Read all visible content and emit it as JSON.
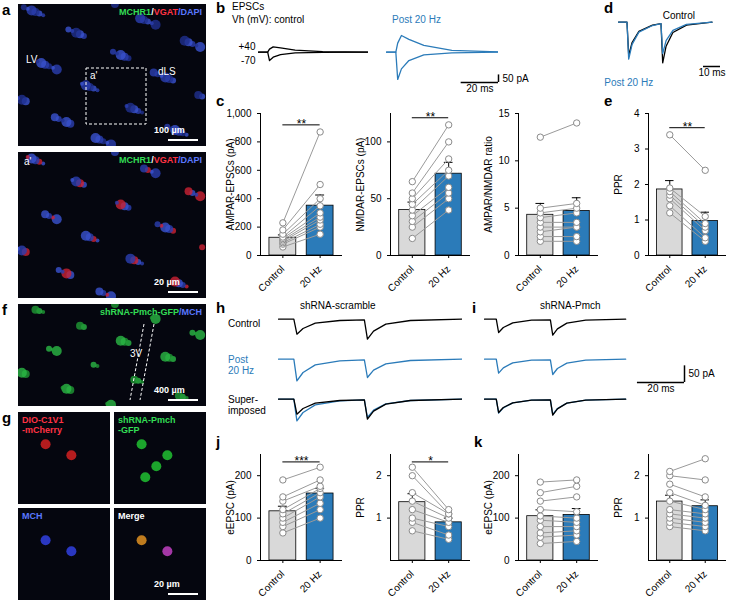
{
  "images": [
    {
      "panel": "a",
      "tiles": [
        {
          "lines": [
            [
              {
                "text": "MCHR1",
                "color": "#33dd55"
              },
              {
                "text": "/",
                "color": "#ffffff"
              },
              {
                "text": "VGAT",
                "color": "#ff3344"
              },
              {
                "text": "/DAPI",
                "color": "#5a78ff"
              }
            ]
          ],
          "labels": [
            "LV",
            "dLS",
            "a'"
          ],
          "scalebar": "100 µm"
        },
        {
          "lines": [
            [
              {
                "text": "MCHR1",
                "color": "#33dd55"
              },
              {
                "text": "/",
                "color": "#ffffff"
              },
              {
                "text": "VGAT",
                "color": "#ff3344"
              },
              {
                "text": "/DAPI",
                "color": "#5a78ff"
              }
            ]
          ],
          "labels": [
            "a'"
          ],
          "scalebar": "20 µm"
        }
      ]
    },
    {
      "panel": "f",
      "tiles": [
        {
          "lines": [
            [
              {
                "text": "shRNA-Pmch-GFP",
                "color": "#33dd55"
              },
              {
                "text": "/MCH",
                "color": "#5a78ff"
              }
            ]
          ],
          "labels": [
            "3V"
          ],
          "scalebar": "400 µm"
        }
      ]
    },
    {
      "panel": "g",
      "tiles": [
        {
          "lines": [
            [
              {
                "text": "DIO-C1V1",
                "color": "#ff3344"
              }
            ],
            [
              {
                "text": "-mCherry",
                "color": "#ff3344"
              }
            ]
          ]
        },
        {
          "lines": [
            [
              {
                "text": "shRNA-Pmch",
                "color": "#33dd55"
              }
            ],
            [
              {
                "text": "-GFP",
                "color": "#33dd55"
              }
            ]
          ]
        },
        {
          "lines": [
            [
              {
                "text": "MCH",
                "color": "#5a78ff"
              }
            ]
          ]
        },
        {
          "lines": [
            [
              {
                "text": "Merge",
                "color": "#ffffff"
              }
            ]
          ],
          "scalebar": "20 µm"
        }
      ]
    }
  ],
  "traces": [
    {
      "panel": "b",
      "title": "EPSCs",
      "x": [
        0,
        5,
        6,
        8,
        12,
        20,
        35,
        60
      ],
      "xlim": [
        0,
        60
      ],
      "ylim": [
        -200,
        130
      ],
      "scalebar": {
        "x": 20,
        "y": 50,
        "x_label": "20 ms",
        "y_label": "50 pA"
      },
      "plots": [
        {
          "label": [
            "Vh (mV): control"
          ],
          "color": "#000000",
          "series": [
            {
              "name": "+40",
              "color": "#000000",
              "y": [
                0,
                0,
                20,
                35,
                28,
                14,
                4,
                1
              ]
            },
            {
              "name": "-70",
              "color": "#000000",
              "y": [
                0,
                0,
                -55,
                -33,
                -16,
                -5,
                -1,
                0
              ]
            }
          ]
        },
        {
          "label": [
            "Post 20 Hz"
          ],
          "color": "#2b7bb9",
          "series": [
            {
              "color": "#2b7bb9",
              "y": [
                0,
                0,
                60,
                110,
                85,
                45,
                12,
                2
              ]
            },
            {
              "color": "#2b7bb9",
              "y": [
                0,
                0,
                -180,
                -110,
                -55,
                -18,
                -4,
                0
              ]
            }
          ]
        }
      ]
    },
    {
      "panel": "d",
      "x": [
        0,
        5,
        6,
        8,
        12,
        20,
        25,
        26,
        28,
        32,
        40,
        55
      ],
      "xlim": [
        0,
        60
      ],
      "ylim": [
        -120,
        10
      ],
      "scalebar": {
        "x": 10,
        "x_label": "10 ms"
      },
      "plots": [
        {
          "series": [
            {
              "name": "Control",
              "color": "#000000",
              "y": [
                0,
                0,
                -90,
                -55,
                -25,
                -8,
                -4,
                -110,
                -65,
                -28,
                -8,
                0
              ]
            },
            {
              "name": "Post 20 Hz",
              "color": "#2b7bb9",
              "y": [
                0,
                0,
                -100,
                -60,
                -27,
                -9,
                -4,
                -85,
                -50,
                -22,
                -6,
                0
              ]
            }
          ]
        }
      ]
    },
    {
      "panel": "h",
      "title": "shRNA-scramble",
      "x": [
        0,
        5,
        6,
        8,
        12,
        20,
        28,
        29,
        31,
        35,
        43,
        60
      ],
      "xlim": [
        0,
        60
      ],
      "ylim": [
        -70,
        5
      ],
      "plots": [
        {
          "label": [
            "Control"
          ],
          "color": "#000000",
          "series": [
            {
              "color": "#000000",
              "y": [
                0,
                0,
                -45,
                -28,
                -12,
                -4,
                -2,
                -60,
                -36,
                -15,
                -4,
                0
              ]
            }
          ]
        },
        {
          "label": [
            "Post",
            "20 Hz"
          ],
          "color": "#2b7bb9",
          "series": [
            {
              "color": "#2b7bb9",
              "y": [
                0,
                0,
                -65,
                -40,
                -17,
                -5,
                -2,
                -55,
                -33,
                -14,
                -4,
                0
              ]
            }
          ]
        },
        {
          "label": [
            "Super-",
            "imposed"
          ],
          "color": "#000000",
          "superimposed": true
        }
      ]
    },
    {
      "panel": "i",
      "title": "shRNA-Pmch",
      "x": [
        0,
        5,
        6,
        8,
        12,
        20,
        28,
        29,
        31,
        35,
        43,
        60
      ],
      "xlim": [
        0,
        85
      ],
      "ylim": [
        -70,
        5
      ],
      "scalebar": {
        "x": 20,
        "y": 50,
        "x_label": "20 ms",
        "y_label": "50 pA"
      },
      "plots": [
        {
          "series": [
            {
              "color": "#000000",
              "y": [
                0,
                0,
                -40,
                -25,
                -11,
                -3,
                -2,
                -48,
                -29,
                -12,
                -3,
                0
              ]
            }
          ]
        },
        {
          "series": [
            {
              "color": "#2b7bb9",
              "y": [
                0,
                0,
                -42,
                -26,
                -11,
                -3,
                -2,
                -46,
                -28,
                -12,
                -3,
                0
              ]
            }
          ]
        },
        {
          "superimposed": true
        }
      ]
    }
  ],
  "chart_data": [
    {
      "panel": "c",
      "type": "bar",
      "categories": [
        "Control",
        "20 Hz"
      ],
      "values": [
        125,
        351
      ],
      "errors": [
        20,
        75
      ],
      "points": [
        [
          60,
          80,
          90,
          100,
          110,
          120,
          130,
          150,
          180,
          230
        ],
        [
          150,
          200,
          220,
          250,
          270,
          300,
          350,
          400,
          500,
          870
        ]
      ],
      "colors": [
        "#d9d9d9",
        "#2b7bb9"
      ],
      "ylabel": "AMPAR-EPSCs (pA)",
      "ylim": [
        0,
        1000
      ],
      "yticks": [
        0,
        200,
        400,
        600,
        800,
        {
          "value": 1000,
          "label": "1,000"
        }
      ],
      "significance": "**"
    },
    {
      "type": "bar",
      "categories": [
        "Control",
        "20 Hz"
      ],
      "values": [
        40,
        72
      ],
      "errors": [
        7,
        10
      ],
      "points": [
        [
          15,
          25,
          30,
          35,
          40,
          45,
          50,
          55,
          65
        ],
        [
          40,
          50,
          55,
          60,
          70,
          75,
          85,
          100,
          115
        ]
      ],
      "colors": [
        "#d9d9d9",
        "#2b7bb9"
      ],
      "ylabel": "NMDAR-EPSCs (pA)",
      "ylim": [
        0,
        125
      ],
      "yticks": [
        0,
        50,
        100
      ],
      "significance": "**"
    },
    {
      "type": "bar",
      "categories": [
        "Control",
        "20 Hz"
      ],
      "values": [
        4.3,
        4.7
      ],
      "errors": [
        1.2,
        1.4
      ],
      "points": [
        [
          1.5,
          2,
          2.5,
          3,
          3.5,
          4,
          4.5,
          5,
          12.5
        ],
        [
          1.5,
          2,
          3,
          3,
          3.5,
          4.5,
          5,
          5.5,
          14
        ]
      ],
      "colors": [
        "#d9d9d9",
        "#2b7bb9"
      ],
      "ylabel": "AMPAR/NMDAR ratio",
      "ylim": [
        0,
        15
      ],
      "yticks": [
        0,
        5,
        10,
        15
      ]
    },
    {
      "panel": "e",
      "type": "bar",
      "categories": [
        "Control",
        "20 Hz"
      ],
      "values": [
        1.86,
        0.97
      ],
      "errors": [
        0.25,
        0.25
      ],
      "points": [
        [
          1.2,
          1.4,
          1.6,
          1.7,
          1.8,
          1.9,
          3.4
        ],
        [
          0.4,
          0.5,
          0.7,
          0.8,
          0.9,
          1.1,
          2.4
        ]
      ],
      "colors": [
        "#d9d9d9",
        "#2b7bb9"
      ],
      "ylabel": "PPR",
      "ylim": [
        0,
        4
      ],
      "yticks": [
        0,
        1,
        2,
        3,
        4
      ],
      "significance": "**"
    },
    {
      "panel": "j",
      "type": "bar",
      "categories": [
        "Control",
        "20 Hz"
      ],
      "values": [
        116,
        158
      ],
      "errors": [
        12,
        12
      ],
      "points": [
        [
          65,
          80,
          90,
          100,
          110,
          120,
          140,
          150,
          190
        ],
        [
          100,
          120,
          135,
          150,
          160,
          170,
          175,
          190,
          220
        ]
      ],
      "colors": [
        "#d9d9d9",
        "#2b7bb9"
      ],
      "ylabel": "eEPSC (pA)",
      "ylim": [
        0,
        250
      ],
      "yticks": [
        0,
        100,
        200
      ],
      "significance": "***"
    },
    {
      "type": "bar",
      "categories": [
        "Control",
        "20 Hz"
      ],
      "values": [
        1.375,
        0.9
      ],
      "errors": [
        0.2,
        0.1
      ],
      "points": [
        [
          0.7,
          0.9,
          1.0,
          1.2,
          1.4,
          1.6,
          2.0,
          2.2
        ],
        [
          0.5,
          0.6,
          0.8,
          0.9,
          1.0,
          1.1,
          1.1,
          1.2
        ]
      ],
      "colors": [
        "#d9d9d9",
        "#2b7bb9"
      ],
      "ylabel": "PPR",
      "ylim": [
        0,
        2.5
      ],
      "yticks": [
        1,
        2
      ],
      "significance": "*"
    },
    {
      "panel": "k",
      "type": "bar",
      "categories": [
        "Control",
        "20 Hz"
      ],
      "values": [
        104.5,
        107.5
      ],
      "errors": [
        15,
        15
      ],
      "points": [
        [
          40,
          55,
          65,
          80,
          95,
          105,
          120,
          140,
          160,
          185
        ],
        [
          45,
          60,
          70,
          80,
          90,
          100,
          115,
          150,
          175,
          190
        ]
      ],
      "colors": [
        "#d9d9d9",
        "#2b7bb9"
      ],
      "ylabel": "eEPSC (pA)",
      "ylim": [
        0,
        250
      ],
      "yticks": [
        0,
        100,
        200
      ]
    },
    {
      "type": "bar",
      "categories": [
        "Control",
        "20 Hz"
      ],
      "values": [
        1.39,
        1.28
      ],
      "errors": [
        0.15,
        0.15
      ],
      "points": [
        [
          0.8,
          0.9,
          1.0,
          1.1,
          1.2,
          1.4,
          1.6,
          1.8,
          2.0,
          2.1
        ],
        [
          0.7,
          0.8,
          0.9,
          1.0,
          1.1,
          1.2,
          1.3,
          1.5,
          1.9,
          2.4
        ]
      ],
      "colors": [
        "#d9d9d9",
        "#2b7bb9"
      ],
      "ylabel": "PPR",
      "ylim": [
        0,
        2.5
      ],
      "yticks": [
        1,
        2
      ]
    }
  ]
}
